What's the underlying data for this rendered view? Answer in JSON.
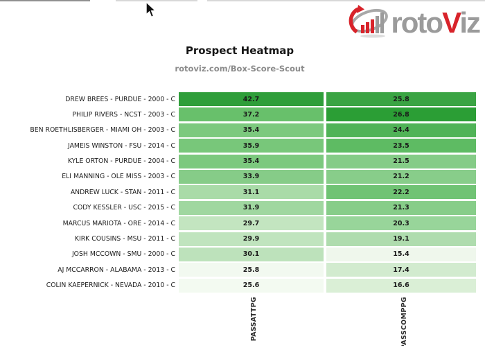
{
  "logo": {
    "text_roto": "roto",
    "text_v": "V",
    "text_iz": "iz",
    "gray": "#9b9b9b",
    "red": "#d8232a"
  },
  "title": "Prospect Heatmap",
  "subtitle": "rotoviz.com/Box-Score-Scout",
  "chart_data": {
    "type": "heatmap",
    "title": "Prospect Heatmap",
    "subtitle": "rotoviz.com/Box-Score-Scout",
    "columns": [
      "PASSATTPG",
      "PASSCOMPPG"
    ],
    "colormap": "greens, scaled per column (light = low, dark = high)",
    "rows": [
      {
        "label": "DREW BREES - PURDUE - 2000 - C",
        "values": [
          42.7,
          25.8
        ],
        "colors": [
          "#2f9e3a",
          "#3aa443"
        ]
      },
      {
        "label": "PHILIP RIVERS - NCST - 2003 - C",
        "values": [
          37.2,
          26.8
        ],
        "colors": [
          "#68c06b",
          "#2b9e35"
        ]
      },
      {
        "label": "BEN ROETHLISBERGER - MIAMI OH - 2003 - C",
        "values": [
          35.4,
          24.4
        ],
        "colors": [
          "#7cc97e",
          "#50b357"
        ]
      },
      {
        "label": "JAMEIS WINSTON - FSU - 2014 - C",
        "values": [
          35.9,
          23.5
        ],
        "colors": [
          "#78c77a",
          "#5ebb63"
        ]
      },
      {
        "label": "KYLE ORTON - PURDUE - 2004 - C",
        "values": [
          35.4,
          21.5
        ],
        "colors": [
          "#7cc97e",
          "#85cc87"
        ]
      },
      {
        "label": "ELI MANNING - OLE MISS - 2003 - C",
        "values": [
          33.9,
          21.2
        ],
        "colors": [
          "#86cc88",
          "#88cd8a"
        ]
      },
      {
        "label": "ANDREW LUCK - STAN - 2011 - C",
        "values": [
          31.1,
          22.2
        ],
        "colors": [
          "#a9dba8",
          "#70c374"
        ]
      },
      {
        "label": "CODY KESSLER - USC - 2015 - C",
        "values": [
          31.9,
          21.3
        ],
        "colors": [
          "#a0d7a0",
          "#87cd89"
        ]
      },
      {
        "label": "MARCUS MARIOTA - ORE - 2014 - C",
        "values": [
          29.7,
          20.3
        ],
        "colors": [
          "#c3e5c0",
          "#98d59a"
        ]
      },
      {
        "label": "KIRK COUSINS - MSU - 2011 - C",
        "values": [
          29.9,
          19.1
        ],
        "colors": [
          "#c0e4be",
          "#afdcae"
        ]
      },
      {
        "label": "JOSH MCCOWN - SMU - 2000 - C",
        "values": [
          30.1,
          15.4
        ],
        "colors": [
          "#bde2bb",
          "#eff7ec"
        ]
      },
      {
        "label": "AJ MCCARRON - ALABAMA - 2013 - C",
        "values": [
          25.8,
          17.4
        ],
        "colors": [
          "#f2f9f0",
          "#d2ebcf"
        ]
      },
      {
        "label": "COLIN KAEPERNICK - NEVADA - 2010 - C",
        "values": [
          25.6,
          16.6
        ],
        "colors": [
          "#f3faf1",
          "#daefd6"
        ]
      }
    ]
  }
}
